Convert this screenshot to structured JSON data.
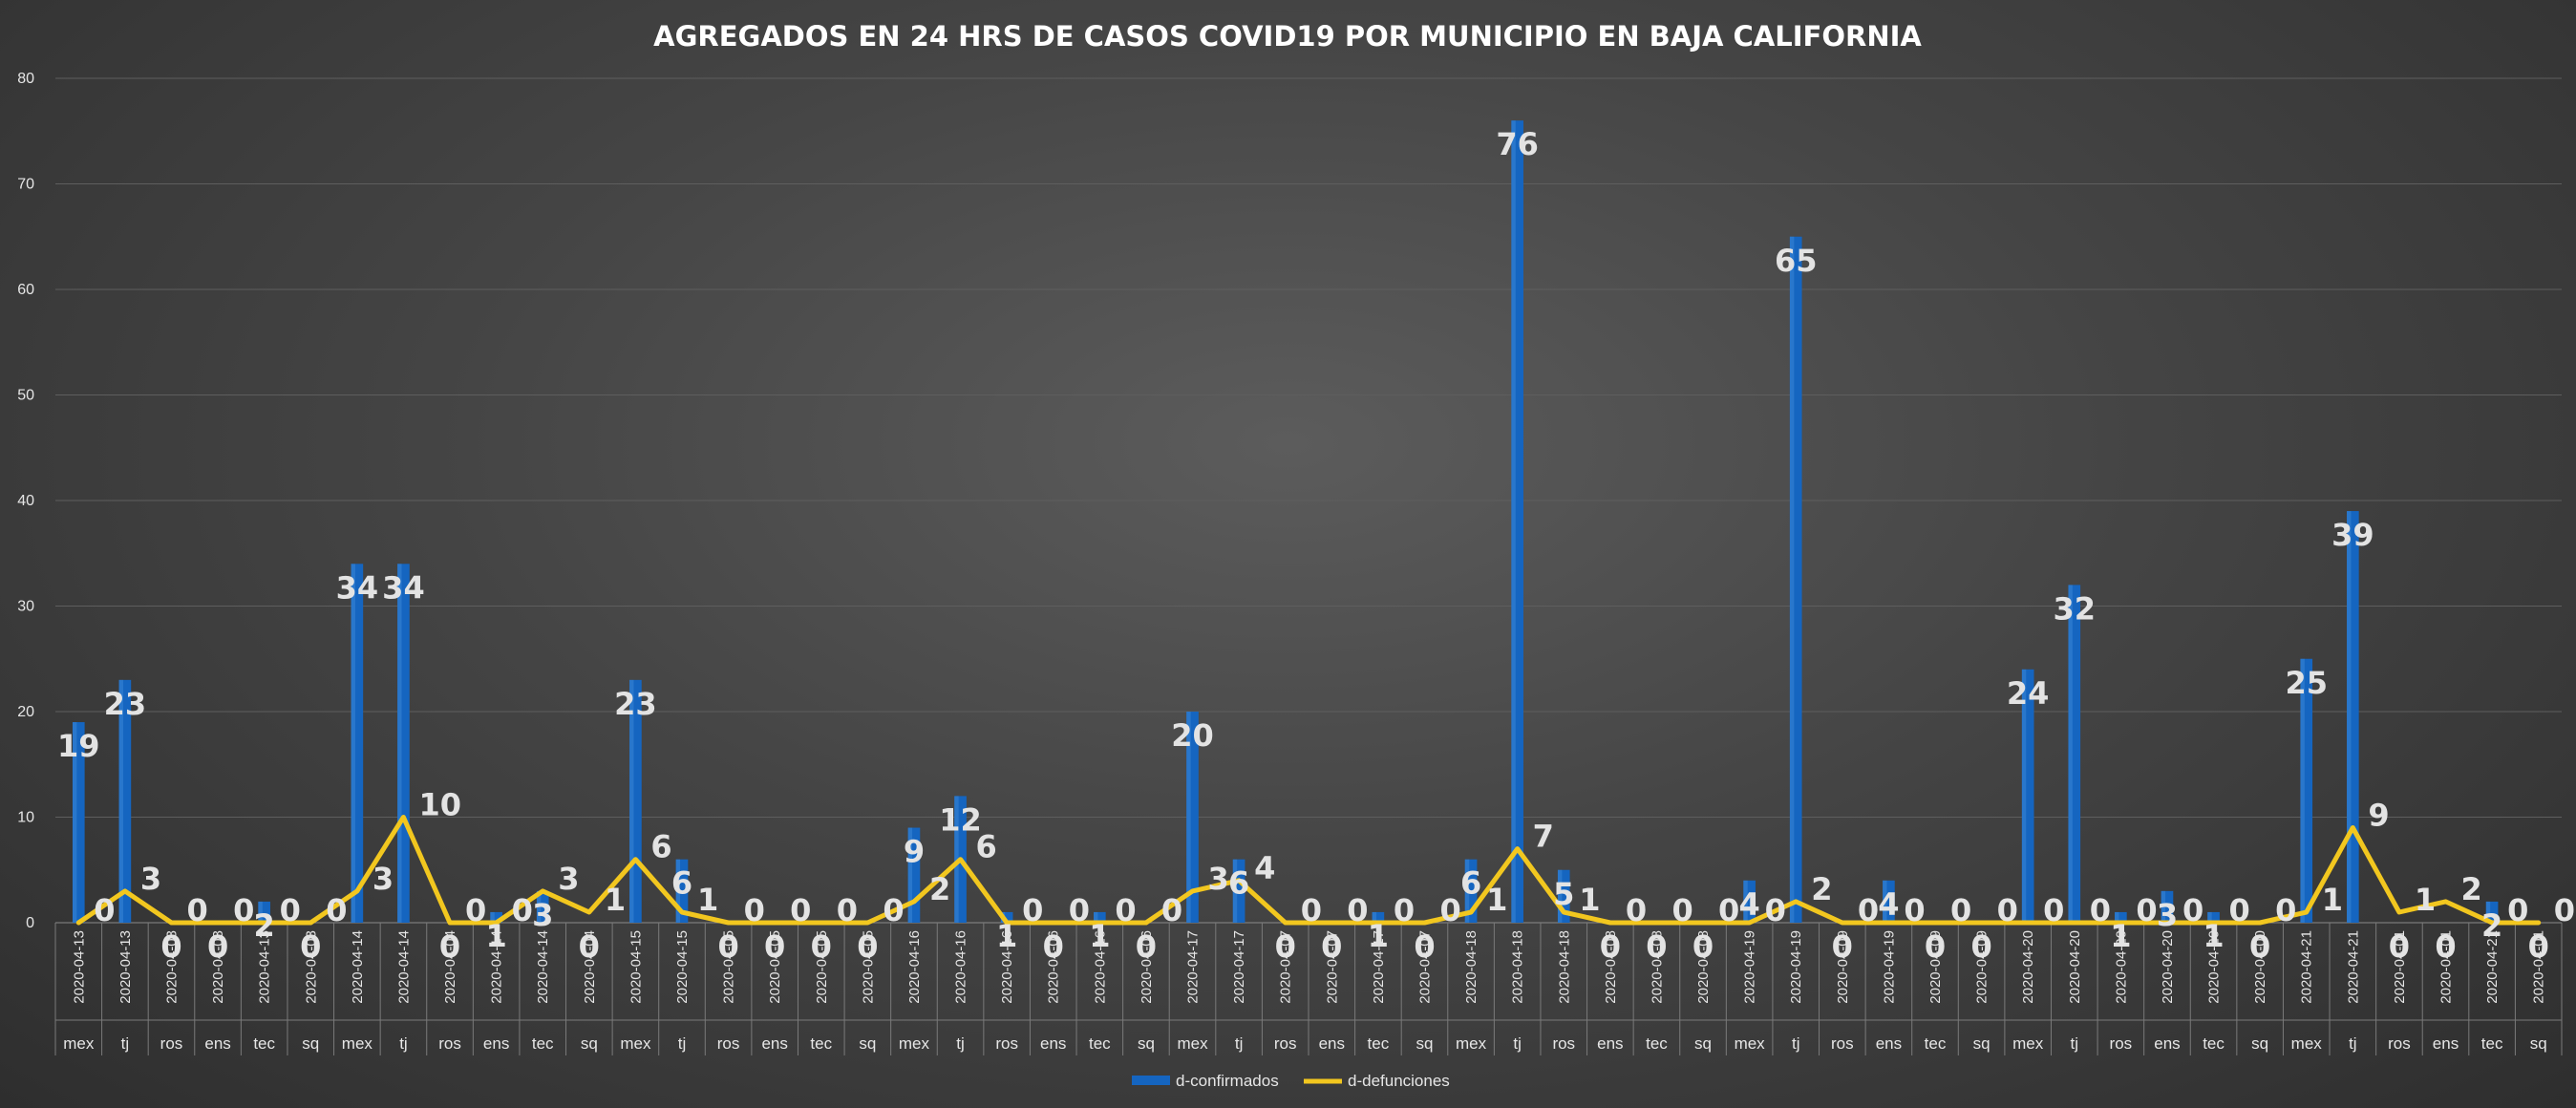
{
  "chart_data": {
    "type": "bar",
    "title": "AGREGADOS EN 24 HRS DE CASOS COVID19 POR MUNICIPIO EN BAJA CALIFORNIA",
    "xlabel": "",
    "ylabel": "",
    "ylim": [
      0,
      80
    ],
    "yticks": [
      0,
      10,
      20,
      30,
      40,
      50,
      60,
      70,
      80
    ],
    "grid": true,
    "legend_position": "bottom",
    "colors": {
      "bars": "#1565c0",
      "line": "#f2c71f",
      "labels": "#e3e3e3"
    },
    "categories": [
      {
        "date": "2020-04-13",
        "muni": "mex"
      },
      {
        "date": "2020-04-13",
        "muni": "tj"
      },
      {
        "date": "2020-04-03",
        "muni": "ros"
      },
      {
        "date": "2020-04-03",
        "muni": "ens"
      },
      {
        "date": "2020-04-13",
        "muni": "tec"
      },
      {
        "date": "2020-04-03",
        "muni": "sq"
      },
      {
        "date": "2020-04-14",
        "muni": "mex"
      },
      {
        "date": "2020-04-14",
        "muni": "tj"
      },
      {
        "date": "2020-04-04",
        "muni": "ros"
      },
      {
        "date": "2020-04-14",
        "muni": "ens"
      },
      {
        "date": "2020-04-14",
        "muni": "tec"
      },
      {
        "date": "2020-04-04",
        "muni": "sq"
      },
      {
        "date": "2020-04-15",
        "muni": "mex"
      },
      {
        "date": "2020-04-15",
        "muni": "tj"
      },
      {
        "date": "2020-04-05",
        "muni": "ros"
      },
      {
        "date": "2020-04-05",
        "muni": "ens"
      },
      {
        "date": "2020-04-05",
        "muni": "tec"
      },
      {
        "date": "2020-04-05",
        "muni": "sq"
      },
      {
        "date": "2020-04-16",
        "muni": "mex"
      },
      {
        "date": "2020-04-16",
        "muni": "tj"
      },
      {
        "date": "2020-04-16",
        "muni": "ros"
      },
      {
        "date": "2020-04-06",
        "muni": "ens"
      },
      {
        "date": "2020-04-16",
        "muni": "tec"
      },
      {
        "date": "2020-04-06",
        "muni": "sq"
      },
      {
        "date": "2020-04-17",
        "muni": "mex"
      },
      {
        "date": "2020-04-17",
        "muni": "tj"
      },
      {
        "date": "2020-04-07",
        "muni": "ros"
      },
      {
        "date": "2020-04-07",
        "muni": "ens"
      },
      {
        "date": "2020-04-17",
        "muni": "tec"
      },
      {
        "date": "2020-04-07",
        "muni": "sq"
      },
      {
        "date": "2020-04-18",
        "muni": "mex"
      },
      {
        "date": "2020-04-18",
        "muni": "tj"
      },
      {
        "date": "2020-04-18",
        "muni": "ros"
      },
      {
        "date": "2020-04-08",
        "muni": "ens"
      },
      {
        "date": "2020-04-08",
        "muni": "tec"
      },
      {
        "date": "2020-04-08",
        "muni": "sq"
      },
      {
        "date": "2020-04-19",
        "muni": "mex"
      },
      {
        "date": "2020-04-19",
        "muni": "tj"
      },
      {
        "date": "2020-04-09",
        "muni": "ros"
      },
      {
        "date": "2020-04-19",
        "muni": "ens"
      },
      {
        "date": "2020-04-09",
        "muni": "tec"
      },
      {
        "date": "2020-04-09",
        "muni": "sq"
      },
      {
        "date": "2020-04-20",
        "muni": "mex"
      },
      {
        "date": "2020-04-20",
        "muni": "tj"
      },
      {
        "date": "2020-04-20",
        "muni": "ros"
      },
      {
        "date": "2020-04-20",
        "muni": "ens"
      },
      {
        "date": "2020-04-20",
        "muni": "tec"
      },
      {
        "date": "2020-04-00",
        "muni": "sq"
      },
      {
        "date": "2020-04-21",
        "muni": "mex"
      },
      {
        "date": "2020-04-21",
        "muni": "tj"
      },
      {
        "date": "2020-04-01",
        "muni": "ros"
      },
      {
        "date": "2020-04-01",
        "muni": "ens"
      },
      {
        "date": "2020-04-21",
        "muni": "tec"
      },
      {
        "date": "2020-04-01",
        "muni": "sq"
      }
    ],
    "series": [
      {
        "name": "d-confirmados",
        "type": "bar",
        "values": [
          19,
          23,
          0,
          0,
          2,
          0,
          34,
          34,
          0,
          1,
          3,
          0,
          23,
          6,
          0,
          0,
          0,
          0,
          9,
          12,
          1,
          0,
          1,
          0,
          20,
          6,
          0,
          0,
          1,
          0,
          6,
          76,
          5,
          0,
          0,
          0,
          4,
          65,
          0,
          4,
          0,
          0,
          24,
          32,
          1,
          3,
          1,
          0,
          25,
          39,
          0,
          0,
          2,
          0
        ],
        "labels": [
          "19",
          "23",
          "0",
          "0",
          "2",
          "0",
          "34",
          "34",
          "0",
          "1",
          "3",
          "0",
          "23",
          "6",
          "0",
          "0",
          "0",
          "0",
          "9",
          "12",
          "1",
          "0",
          "1",
          "0",
          "20",
          "6",
          "0",
          "0",
          "1",
          "0",
          "6",
          "76",
          "5",
          "0",
          "0",
          "0",
          "4",
          "65",
          "0",
          "4",
          "0",
          "0",
          "24",
          "32",
          "1",
          "3",
          "1",
          "0",
          "25",
          "39",
          "0",
          "0",
          "2",
          "0"
        ]
      },
      {
        "name": "d-defunciones",
        "type": "line",
        "values": [
          0,
          3,
          0,
          0,
          0,
          0,
          3,
          10,
          0,
          0,
          3,
          1,
          6,
          1,
          0,
          0,
          0,
          0,
          2,
          6,
          0,
          0,
          0,
          0,
          3,
          4,
          0,
          0,
          0,
          0,
          1,
          7,
          1,
          0,
          0,
          0,
          0,
          2,
          0,
          0,
          0,
          0,
          0,
          0,
          0,
          0,
          0,
          0,
          1,
          9,
          1,
          2,
          0,
          0
        ],
        "labels": [
          "0",
          "3",
          "0",
          "0",
          "0",
          "0",
          "3",
          "10",
          "0",
          "0",
          "3",
          "1",
          "6",
          "1",
          "0",
          "0",
          "0",
          "0",
          "2",
          "6",
          "0",
          "0",
          "0",
          "0",
          "3",
          "4",
          "0",
          "0",
          "0",
          "0",
          "1",
          "7",
          "1",
          "0",
          "0",
          "0",
          "0",
          "2",
          "0",
          "0",
          "0",
          "0",
          "0",
          "0",
          "0",
          "0",
          "0",
          "0",
          "1",
          "9",
          "1",
          "2",
          "0",
          "0"
        ]
      }
    ]
  }
}
